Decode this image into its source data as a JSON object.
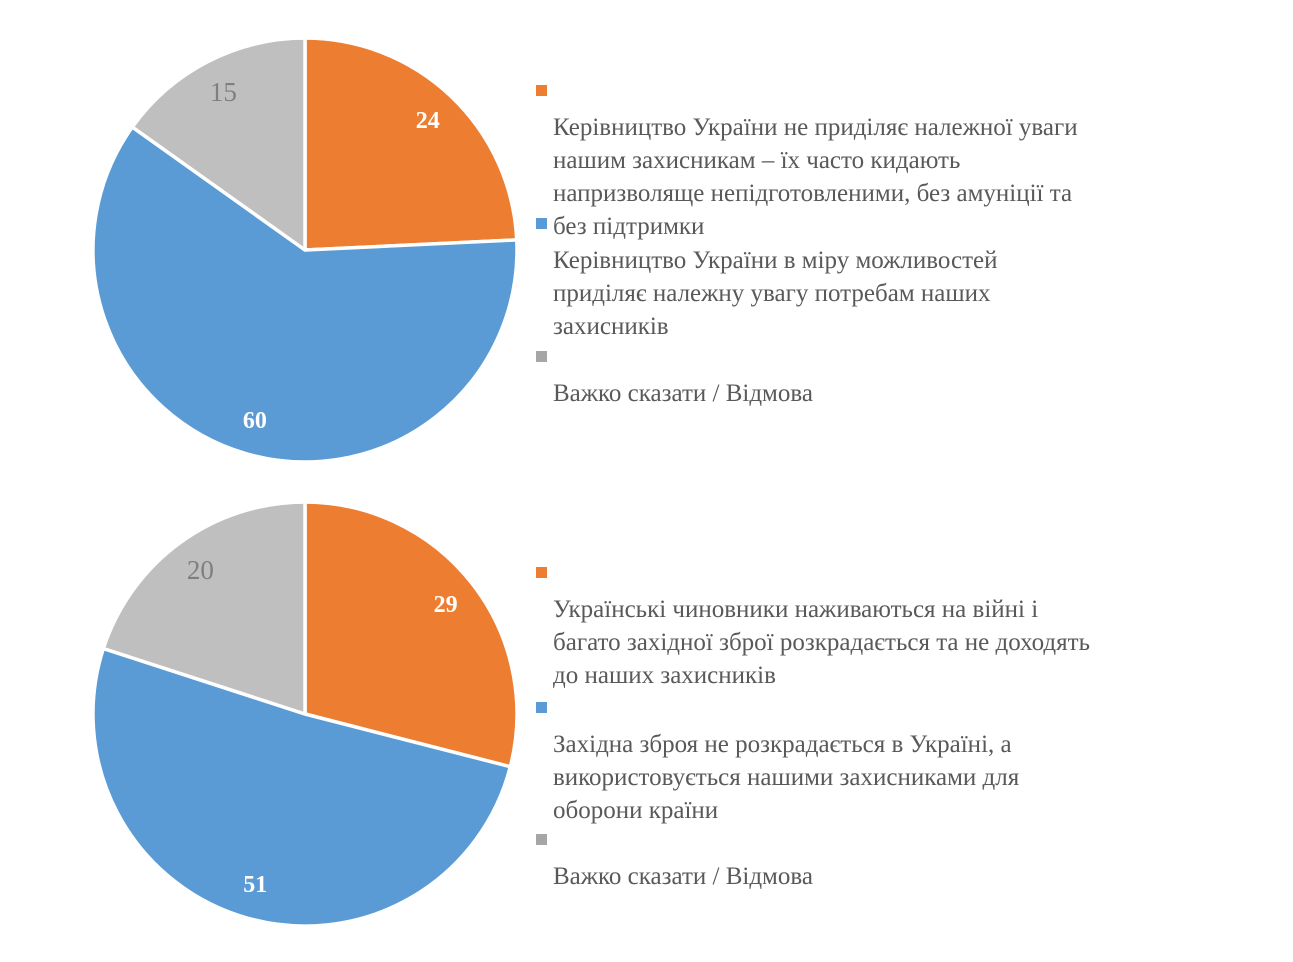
{
  "page": {
    "background_color": "#FFFFFF"
  },
  "chart_data": [
    {
      "type": "pie",
      "title": "",
      "categories": [
        "Керівництво України не приділяє належної уваги\nнашим захисникам – їх часто кидають\nнапризволяще непідготовленими, без амуніції та\nбез підтримки",
        "Керівництво України в міру можливостей\nприділяє належну увагу потребам наших\nзахисників",
        "Важко сказати / Відмова"
      ],
      "values": [
        24,
        60,
        15
      ],
      "colors": [
        "#ED7D31",
        "#5B9BD5",
        "#BFBFBF"
      ],
      "legend_marker_colors": [
        "#ED7D31",
        "#5B9BD5",
        "#A6A6A6"
      ],
      "data_labels": [
        {
          "text": "24",
          "color": "#FFFFFF",
          "bold": true
        },
        {
          "text": "60",
          "color": "#FFFFFF",
          "bold": true
        },
        {
          "text": "15",
          "color": "#7F7F7F",
          "bold": false
        }
      ],
      "start_angle_deg": 0,
      "direction": "clockwise",
      "legend_position": "right",
      "slice_border_color": "#FFFFFF"
    },
    {
      "type": "pie",
      "title": "",
      "categories": [
        "Українські чиновники наживаються на війні і\nбагато західної зброї розкрадається та не доходять\nдо наших захисників",
        "Західна зброя не розкрадається в Україні, а\nвикористовується нашими захисниками для\nоборони країни",
        "Важко сказати / Відмова"
      ],
      "values": [
        29,
        51,
        20
      ],
      "colors": [
        "#ED7D31",
        "#5B9BD5",
        "#BFBFBF"
      ],
      "legend_marker_colors": [
        "#ED7D31",
        "#5B9BD5",
        "#A6A6A6"
      ],
      "data_labels": [
        {
          "text": "29",
          "color": "#FFFFFF",
          "bold": true
        },
        {
          "text": "51",
          "color": "#FFFFFF",
          "bold": true
        },
        {
          "text": "20",
          "color": "#7F7F7F",
          "bold": false
        }
      ],
      "start_angle_deg": 0,
      "direction": "clockwise",
      "legend_position": "right",
      "slice_border_color": "#FFFFFF"
    }
  ],
  "legend_text_color": "#595959"
}
